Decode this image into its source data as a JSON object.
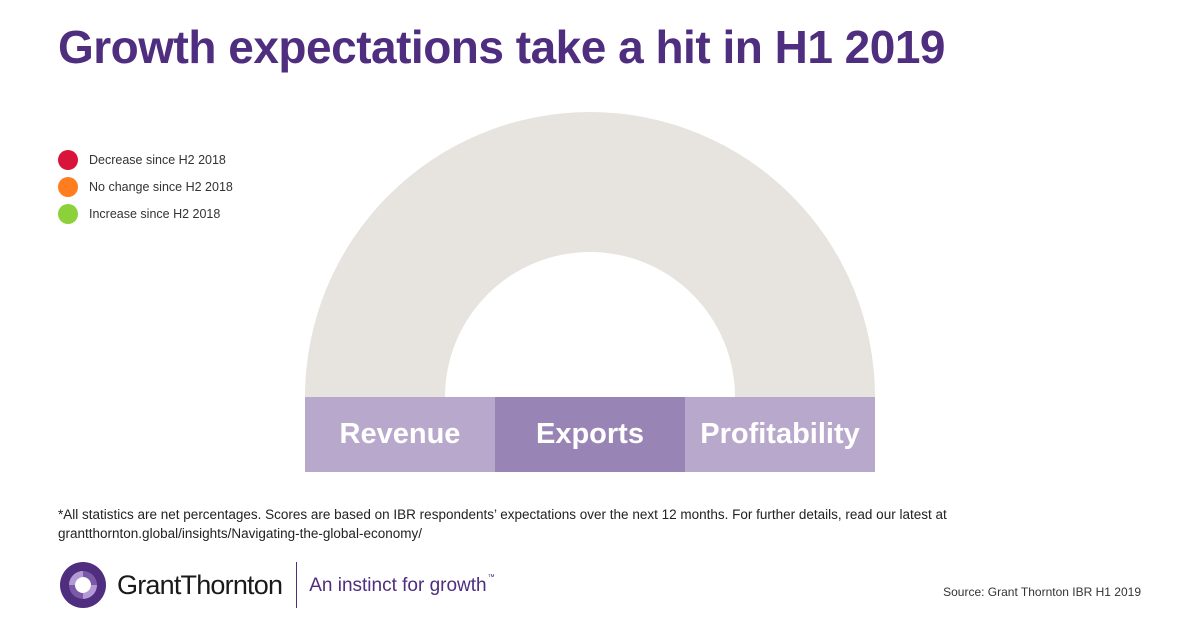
{
  "title": "Growth expectations take a hit in H1 2019",
  "legend": {
    "items": [
      {
        "label": "Decrease since H2 2018",
        "color": "#d9143a"
      },
      {
        "label": "No change since H2 2018",
        "color": "#ff7d1e"
      },
      {
        "label": "Increase since H2 2018",
        "color": "#8dd13a"
      }
    ]
  },
  "gauge": {
    "labels": [
      "Revenue",
      "Exports",
      "Profitability"
    ],
    "colors": {
      "arc": "#e7e4df",
      "revenue": "#b8a9cc",
      "exports": "#9985b5",
      "profitability": "#b8a9cc"
    }
  },
  "footnote": {
    "line1": "*All statistics are net percentages. Scores are based on IBR respondents’ expectations over the next 12 months. For further details, read our latest at",
    "line2": "grantthornton.global/insights/Navigating-the-global-economy/"
  },
  "brand": {
    "name": "GrantThornton",
    "tagline": "An instinct for growth",
    "trademark": "™",
    "primary_color": "#4f2d7f"
  },
  "source": "Source: Grant Thornton IBR H1 2019"
}
